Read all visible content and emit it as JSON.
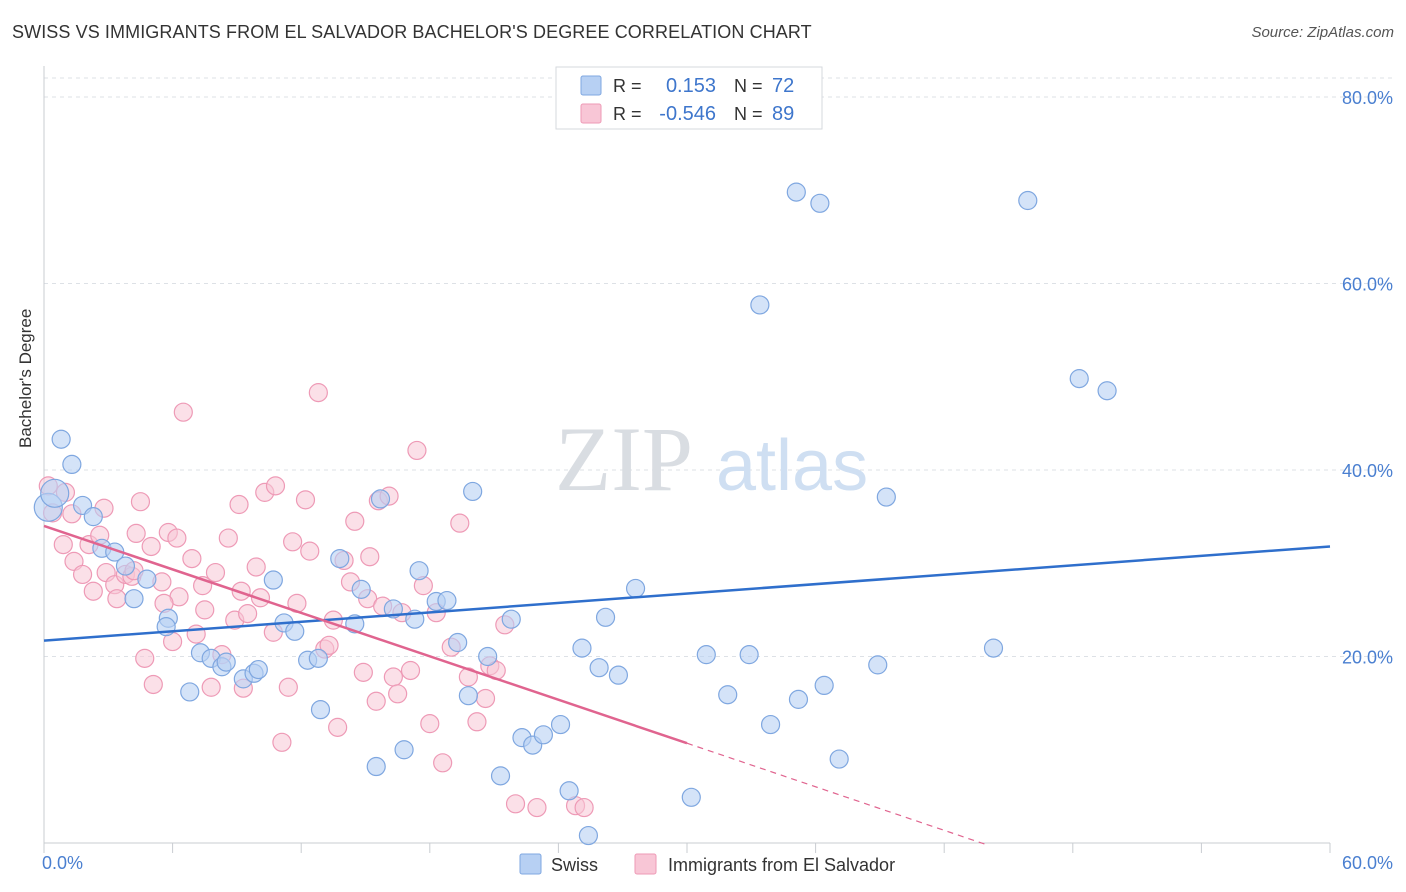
{
  "header": {
    "title": "SWISS VS IMMIGRANTS FROM EL SALVADOR BACHELOR'S DEGREE CORRELATION CHART",
    "source": "Source: ZipAtlas.com"
  },
  "watermark": {
    "zip": "ZIP",
    "atlas": "atlas"
  },
  "colors": {
    "swiss_fill": "#b7d0f3",
    "swiss_stroke": "#7fa7e0",
    "swiss_line": "#2f6fcc",
    "salv_fill": "#f8c6d6",
    "salv_stroke": "#ee9ab6",
    "salv_line": "#e0648f",
    "axis_text": "#4a7fd0",
    "grid": "#dde1e6"
  },
  "legend_top": {
    "r_label": "R =",
    "n_label": "N =",
    "swiss": {
      "r": "0.153",
      "n": "72"
    },
    "salvador": {
      "r": "-0.546",
      "n": "89"
    }
  },
  "legend_bottom": {
    "swiss": "Swiss",
    "salvador": "Immigrants from El Salvador"
  },
  "chart_data": {
    "type": "scatter",
    "title": "SWISS VS IMMIGRANTS FROM EL SALVADOR BACHELOR'S DEGREE CORRELATION CHART",
    "xlabel": "",
    "ylabel": "Bachelor's Degree",
    "xlim": [
      0,
      60
    ],
    "ylim": [
      0,
      83
    ],
    "x_tick_labels": [
      "0.0%",
      "60.0%"
    ],
    "y_ticks": [
      20,
      40,
      60,
      80
    ],
    "y_tick_labels": [
      "20.0%",
      "40.0%",
      "60.0%",
      "80.0%"
    ],
    "grid": true,
    "legend_position": "top-center",
    "series": [
      {
        "name": "Swiss",
        "r": 0.153,
        "n": 72,
        "trend": {
          "x": [
            0,
            60
          ],
          "y": [
            21.7,
            31.8
          ]
        },
        "points": [
          [
            0.2,
            36.0
          ],
          [
            0.8,
            43.3
          ],
          [
            1.3,
            40.6
          ],
          [
            1.8,
            36.2
          ],
          [
            2.3,
            35.0
          ],
          [
            2.7,
            31.6
          ],
          [
            3.3,
            31.2
          ],
          [
            3.8,
            29.7
          ],
          [
            4.2,
            26.2
          ],
          [
            4.8,
            28.3
          ],
          [
            5.8,
            24.1
          ],
          [
            5.7,
            23.2
          ],
          [
            6.8,
            16.2
          ],
          [
            7.3,
            20.4
          ],
          [
            7.8,
            19.8
          ],
          [
            8.3,
            18.9
          ],
          [
            8.5,
            19.4
          ],
          [
            9.3,
            17.6
          ],
          [
            9.8,
            18.2
          ],
          [
            10.0,
            18.6
          ],
          [
            10.7,
            28.2
          ],
          [
            11.2,
            23.6
          ],
          [
            11.7,
            22.7
          ],
          [
            12.3,
            19.6
          ],
          [
            12.8,
            19.8
          ],
          [
            12.9,
            14.3
          ],
          [
            13.8,
            30.5
          ],
          [
            14.5,
            23.5
          ],
          [
            14.8,
            27.2
          ],
          [
            15.5,
            8.2
          ],
          [
            15.7,
            36.9
          ],
          [
            16.3,
            25.1
          ],
          [
            16.8,
            10.0
          ],
          [
            17.3,
            24.0
          ],
          [
            17.5,
            29.2
          ],
          [
            18.3,
            25.9
          ],
          [
            18.8,
            26.0
          ],
          [
            19.3,
            21.5
          ],
          [
            19.8,
            15.8
          ],
          [
            20.0,
            37.7
          ],
          [
            20.7,
            20.0
          ],
          [
            21.3,
            7.2
          ],
          [
            21.8,
            24.0
          ],
          [
            22.3,
            11.3
          ],
          [
            22.8,
            10.5
          ],
          [
            23.3,
            11.6
          ],
          [
            24.1,
            12.7
          ],
          [
            24.5,
            5.6
          ],
          [
            25.1,
            20.9
          ],
          [
            25.4,
            0.8
          ],
          [
            25.9,
            18.8
          ],
          [
            26.2,
            24.2
          ],
          [
            26.8,
            18.0
          ],
          [
            27.6,
            27.3
          ],
          [
            30.2,
            4.9
          ],
          [
            30.9,
            20.2
          ],
          [
            31.9,
            15.9
          ],
          [
            32.9,
            20.2
          ],
          [
            33.4,
            57.7
          ],
          [
            33.9,
            12.7
          ],
          [
            35.1,
            69.8
          ],
          [
            35.2,
            15.4
          ],
          [
            36.2,
            68.6
          ],
          [
            36.4,
            16.9
          ],
          [
            37.1,
            9.0
          ],
          [
            38.9,
            19.1
          ],
          [
            39.3,
            37.1
          ],
          [
            44.3,
            20.9
          ],
          [
            45.9,
            68.9
          ],
          [
            48.3,
            49.8
          ],
          [
            49.6,
            48.5
          ],
          [
            0.5,
            37.5
          ]
        ]
      },
      {
        "name": "Immigrants from El Salvador",
        "r": -0.546,
        "n": 89,
        "trend": {
          "x": [
            0,
            30
          ],
          "y": [
            34.0,
            10.7
          ]
        },
        "trend_dashed": {
          "x": [
            30,
            44
          ],
          "y": [
            10.7,
            -0.2
          ]
        },
        "points": [
          [
            0.2,
            38.3
          ],
          [
            0.4,
            35.4
          ],
          [
            0.9,
            32.0
          ],
          [
            1.3,
            35.3
          ],
          [
            1.4,
            30.2
          ],
          [
            1.8,
            28.8
          ],
          [
            2.1,
            32.0
          ],
          [
            2.3,
            27.0
          ],
          [
            2.6,
            33.0
          ],
          [
            2.9,
            29.0
          ],
          [
            3.3,
            27.7
          ],
          [
            3.4,
            26.2
          ],
          [
            3.8,
            28.8
          ],
          [
            4.1,
            28.6
          ],
          [
            4.2,
            29.2
          ],
          [
            4.3,
            33.2
          ],
          [
            4.5,
            36.6
          ],
          [
            4.7,
            19.8
          ],
          [
            5.0,
            31.8
          ],
          [
            5.1,
            17.0
          ],
          [
            5.5,
            28.0
          ],
          [
            5.8,
            33.3
          ],
          [
            6.0,
            21.6
          ],
          [
            6.3,
            26.4
          ],
          [
            6.5,
            46.2
          ],
          [
            6.9,
            30.5
          ],
          [
            7.1,
            22.4
          ],
          [
            7.4,
            27.6
          ],
          [
            7.5,
            25.0
          ],
          [
            7.8,
            16.7
          ],
          [
            8.0,
            29.0
          ],
          [
            8.3,
            20.2
          ],
          [
            8.6,
            32.7
          ],
          [
            8.9,
            23.9
          ],
          [
            9.2,
            27.0
          ],
          [
            9.3,
            16.6
          ],
          [
            9.5,
            24.6
          ],
          [
            9.9,
            29.6
          ],
          [
            10.1,
            26.3
          ],
          [
            10.3,
            37.6
          ],
          [
            10.7,
            22.6
          ],
          [
            10.8,
            38.3
          ],
          [
            11.1,
            10.8
          ],
          [
            11.4,
            16.7
          ],
          [
            11.8,
            25.7
          ],
          [
            12.2,
            36.8
          ],
          [
            12.4,
            31.3
          ],
          [
            12.8,
            48.3
          ],
          [
            13.1,
            20.8
          ],
          [
            13.3,
            21.2
          ],
          [
            13.7,
            12.4
          ],
          [
            14.0,
            30.3
          ],
          [
            14.3,
            28.0
          ],
          [
            14.5,
            34.5
          ],
          [
            15.1,
            26.2
          ],
          [
            15.2,
            30.7
          ],
          [
            15.5,
            15.2
          ],
          [
            15.6,
            36.7
          ],
          [
            15.8,
            25.4
          ],
          [
            16.3,
            17.8
          ],
          [
            16.5,
            16.0
          ],
          [
            16.7,
            24.7
          ],
          [
            17.1,
            18.5
          ],
          [
            17.4,
            42.1
          ],
          [
            17.7,
            27.6
          ],
          [
            18.0,
            12.8
          ],
          [
            18.3,
            24.7
          ],
          [
            18.6,
            8.6
          ],
          [
            19.0,
            21.0
          ],
          [
            19.4,
            34.3
          ],
          [
            19.8,
            17.8
          ],
          [
            20.2,
            13.0
          ],
          [
            20.6,
            15.5
          ],
          [
            20.8,
            19.0
          ],
          [
            21.1,
            18.5
          ],
          [
            21.5,
            23.4
          ],
          [
            22.0,
            4.2
          ],
          [
            23.0,
            3.8
          ],
          [
            24.8,
            4.0
          ],
          [
            25.2,
            3.8
          ],
          [
            1.0,
            37.6
          ],
          [
            2.8,
            35.9
          ],
          [
            5.6,
            25.7
          ],
          [
            6.2,
            32.7
          ],
          [
            9.1,
            36.3
          ],
          [
            11.6,
            32.3
          ],
          [
            13.5,
            23.9
          ],
          [
            14.9,
            18.3
          ],
          [
            16.1,
            37.2
          ]
        ]
      }
    ]
  }
}
